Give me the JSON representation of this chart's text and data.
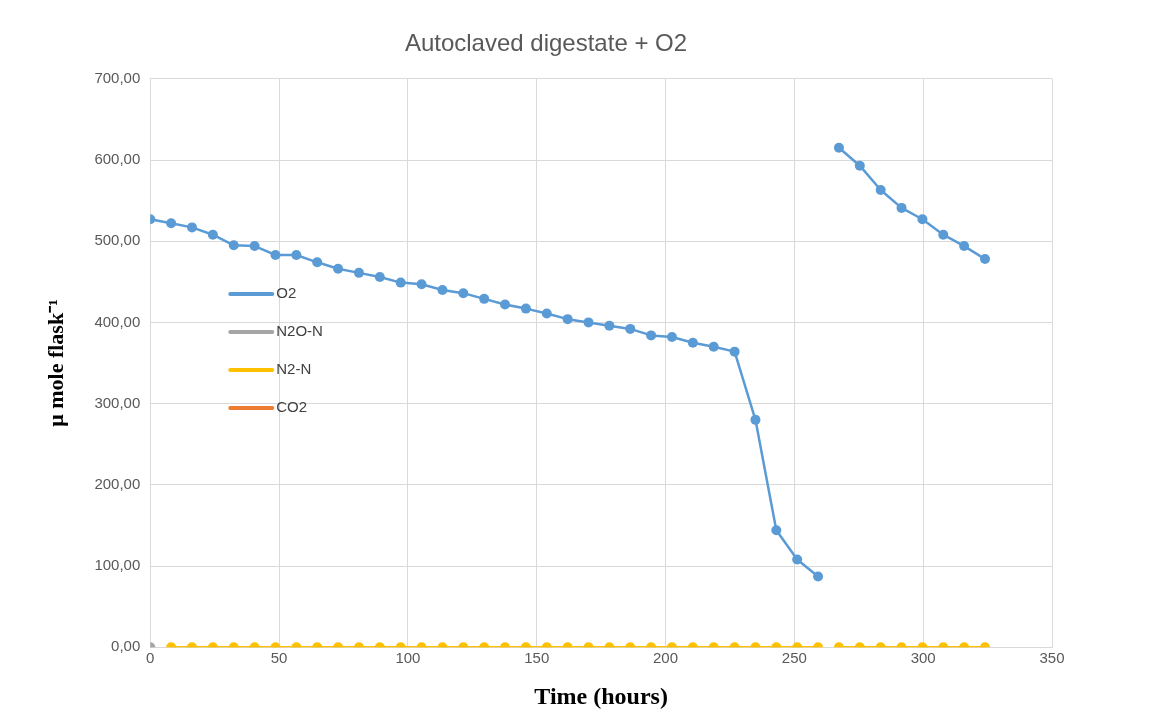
{
  "chart_data": {
    "type": "line",
    "title": "Autoclaved digestate + O2",
    "xlabel": "Time (hours)",
    "ylabel": "μ mole flask⁻¹",
    "x": [
      0,
      8.1,
      16.2,
      24.3,
      32.4,
      40.5,
      48.6,
      56.7,
      64.8,
      72.9,
      81,
      89.1,
      97.2,
      105.3,
      113.4,
      121.5,
      129.6,
      137.7,
      145.8,
      153.9,
      162,
      170.1,
      178.2,
      186.3,
      194.4,
      202.5,
      210.6,
      218.7,
      226.8,
      234.9,
      243,
      251.1,
      259.2,
      263.2,
      267.3,
      275.4,
      283.5,
      291.6,
      299.7,
      307.8,
      315.9,
      324
    ],
    "xlim": [
      0,
      350
    ],
    "xticks": [
      0,
      50,
      100,
      150,
      200,
      250,
      300,
      350
    ],
    "ylim": [
      0,
      700
    ],
    "yticks": [
      {
        "value": 0,
        "label": "0,00"
      },
      {
        "value": 100,
        "label": "100,00"
      },
      {
        "value": 200,
        "label": "200,00"
      },
      {
        "value": 300,
        "label": "300,00"
      },
      {
        "value": 400,
        "label": "400,00"
      },
      {
        "value": 500,
        "label": "500,00"
      },
      {
        "value": 600,
        "label": "600,00"
      },
      {
        "value": 700,
        "label": "700,00"
      }
    ],
    "grid": true,
    "legend": "left",
    "marker": "circle",
    "line_style": "solid",
    "series": [
      {
        "name": "O2",
        "color": "#5b9bd5",
        "values": [
          527,
          522,
          517,
          508,
          495,
          494,
          483,
          483,
          474,
          466,
          461,
          456,
          449,
          447,
          440,
          436,
          429,
          422,
          417,
          411,
          404,
          400,
          396,
          392,
          384,
          382,
          375,
          370,
          364,
          280,
          144,
          108,
          87,
          null,
          615,
          593,
          563,
          541,
          527,
          508,
          494,
          478
        ]
      },
      {
        "name": "N2O-N",
        "color": "#a5a5a5",
        "values": [
          0,
          null,
          null,
          null,
          null,
          null,
          null,
          null,
          null,
          null,
          null,
          null,
          null,
          null,
          null,
          null,
          null,
          null,
          null,
          null,
          null,
          null,
          null,
          null,
          null,
          null,
          null,
          null,
          null,
          null,
          null,
          null,
          null,
          null,
          null,
          null,
          null,
          null,
          null,
          null,
          null,
          null
        ]
      },
      {
        "name": "N2-N",
        "color": "#ffc000",
        "values": [
          null,
          0,
          0,
          0,
          0,
          0,
          0,
          0,
          0,
          0,
          0,
          0,
          0,
          0,
          0,
          0,
          0,
          0,
          0,
          0,
          0,
          0,
          0,
          0,
          0,
          0,
          0,
          0,
          0,
          0,
          0,
          0,
          0,
          null,
          0,
          0,
          0,
          0,
          0,
          0,
          0,
          0
        ]
      },
      {
        "name": "CO2",
        "color": "#ed7d31",
        "values": [
          null,
          null,
          null,
          null,
          null,
          null,
          null,
          null,
          null,
          null,
          null,
          null,
          null,
          null,
          null,
          null,
          null,
          null,
          null,
          null,
          null,
          null,
          null,
          null,
          null,
          null,
          null,
          null,
          null,
          null,
          null,
          null,
          null,
          null,
          null,
          null,
          null,
          null,
          null,
          null,
          null,
          null
        ]
      }
    ]
  }
}
